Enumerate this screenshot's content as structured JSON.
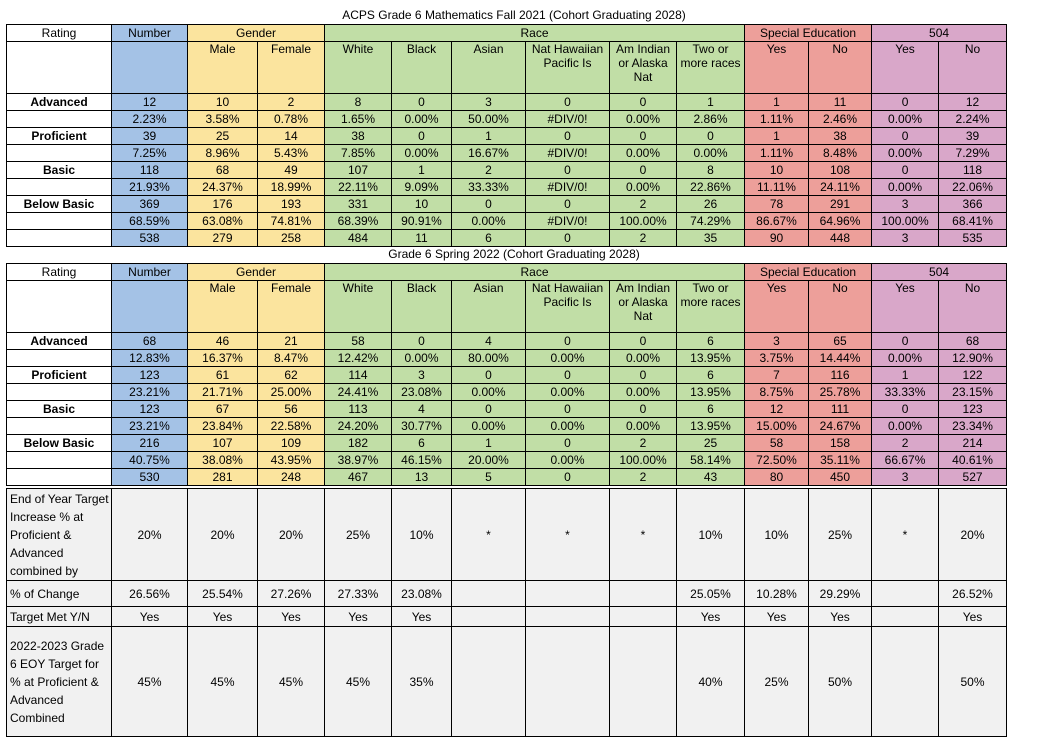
{
  "fall": {
    "title": "ACPS Grade 6 Mathematics  Fall 2021 (Cohort Graduating 2028)",
    "headers": {
      "rating": "Rating",
      "number": "Number",
      "gender": "Gender",
      "race": "Race",
      "sped": "Special Education",
      "s504": "504",
      "male": "Male",
      "female": "Female",
      "white": "White",
      "black": "Black",
      "asian": "Asian",
      "nathawaiian": "Nat Hawaiian Pacific Is",
      "amindian": "Am Indian or Alaska Nat",
      "twoormore": "Two or more races",
      "yes": "Yes",
      "no": "No"
    },
    "rows": [
      {
        "label": "Advanced",
        "values": [
          "12",
          "10",
          "2",
          "8",
          "0",
          "3",
          "0",
          "0",
          "1",
          "1",
          "11",
          "0",
          "12"
        ]
      },
      {
        "label": "",
        "values": [
          "2.23%",
          "3.58%",
          "0.78%",
          "1.65%",
          "0.00%",
          "50.00%",
          "#DIV/0!",
          "0.00%",
          "2.86%",
          "1.11%",
          "2.46%",
          "0.00%",
          "2.24%"
        ]
      },
      {
        "label": "Proficient",
        "values": [
          "39",
          "25",
          "14",
          "38",
          "0",
          "1",
          "0",
          "0",
          "0",
          "1",
          "38",
          "0",
          "39"
        ]
      },
      {
        "label": "",
        "values": [
          "7.25%",
          "8.96%",
          "5.43%",
          "7.85%",
          "0.00%",
          "16.67%",
          "#DIV/0!",
          "0.00%",
          "0.00%",
          "1.11%",
          "8.48%",
          "0.00%",
          "7.29%"
        ]
      },
      {
        "label": "Basic",
        "values": [
          "118",
          "68",
          "49",
          "107",
          "1",
          "2",
          "0",
          "0",
          "8",
          "10",
          "108",
          "0",
          "118"
        ]
      },
      {
        "label": "",
        "values": [
          "21.93%",
          "24.37%",
          "18.99%",
          "22.11%",
          "9.09%",
          "33.33%",
          "#DIV/0!",
          "0.00%",
          "22.86%",
          "11.11%",
          "24.11%",
          "0.00%",
          "22.06%"
        ]
      },
      {
        "label": "Below Basic",
        "values": [
          "369",
          "176",
          "193",
          "331",
          "10",
          "0",
          "0",
          "2",
          "26",
          "78",
          "291",
          "3",
          "366"
        ]
      },
      {
        "label": "",
        "values": [
          "68.59%",
          "63.08%",
          "74.81%",
          "68.39%",
          "90.91%",
          "0.00%",
          "#DIV/0!",
          "100.00%",
          "74.29%",
          "86.67%",
          "64.96%",
          "100.00%",
          "68.41%"
        ]
      },
      {
        "label": "",
        "values": [
          "538",
          "279",
          "258",
          "484",
          "11",
          "6",
          "0",
          "2",
          "35",
          "90",
          "448",
          "3",
          "535"
        ]
      }
    ]
  },
  "spring": {
    "title": "Grade 6 Spring 2022  (Cohort Graduating 2028)",
    "rows": [
      {
        "label": "Advanced",
        "values": [
          "68",
          "46",
          "21",
          "58",
          "0",
          "4",
          "0",
          "0",
          "6",
          "3",
          "65",
          "0",
          "68"
        ]
      },
      {
        "label": "",
        "values": [
          "12.83%",
          "16.37%",
          "8.47%",
          "12.42%",
          "0.00%",
          "80.00%",
          "0.00%",
          "0.00%",
          "13.95%",
          "3.75%",
          "14.44%",
          "0.00%",
          "12.90%"
        ]
      },
      {
        "label": "Proficient",
        "values": [
          "123",
          "61",
          "62",
          "114",
          "3",
          "0",
          "0",
          "0",
          "6",
          "7",
          "116",
          "1",
          "122"
        ]
      },
      {
        "label": "",
        "values": [
          "23.21%",
          "21.71%",
          "25.00%",
          "24.41%",
          "23.08%",
          "0.00%",
          "0.00%",
          "0.00%",
          "13.95%",
          "8.75%",
          "25.78%",
          "33.33%",
          "23.15%"
        ]
      },
      {
        "label": "Basic",
        "values": [
          "123",
          "67",
          "56",
          "113",
          "4",
          "0",
          "0",
          "0",
          "6",
          "12",
          "111",
          "0",
          "123"
        ]
      },
      {
        "label": "",
        "values": [
          "23.21%",
          "23.84%",
          "22.58%",
          "24.20%",
          "30.77%",
          "0.00%",
          "0.00%",
          "0.00%",
          "13.95%",
          "15.00%",
          "24.67%",
          "0.00%",
          "23.34%"
        ]
      },
      {
        "label": "Below Basic",
        "values": [
          "216",
          "107",
          "109",
          "182",
          "6",
          "1",
          "0",
          "2",
          "25",
          "58",
          "158",
          "2",
          "214"
        ]
      },
      {
        "label": "",
        "values": [
          "40.75%",
          "38.08%",
          "43.95%",
          "38.97%",
          "46.15%",
          "20.00%",
          "0.00%",
          "100.00%",
          "58.14%",
          "72.50%",
          "35.11%",
          "66.67%",
          "40.61%"
        ]
      },
      {
        "label": "",
        "values": [
          "530",
          "281",
          "248",
          "467",
          "13",
          "5",
          "0",
          "2",
          "43",
          "80",
          "450",
          "3",
          "527"
        ]
      }
    ]
  },
  "targets": [
    {
      "label": "End of Year Target Increase % at Proficient & Advanced combined  by",
      "values": [
        "20%",
        "20%",
        "20%",
        "25%",
        "10%",
        "*",
        "*",
        "*",
        "10%",
        "10%",
        "25%",
        "*",
        "20%"
      ]
    },
    {
      "label": "% of Change",
      "values": [
        "26.56%",
        "25.54%",
        "27.26%",
        "27.33%",
        "23.08%",
        "",
        "",
        "",
        "25.05%",
        "10.28%",
        "29.29%",
        "",
        "26.52%"
      ]
    },
    {
      "label": "Target Met  Y/N",
      "values": [
        "Yes",
        "Yes",
        "Yes",
        "Yes",
        "Yes",
        "",
        "",
        "",
        "Yes",
        "Yes",
        "Yes",
        "",
        "Yes"
      ]
    },
    {
      "label": "2022-2023 Grade 6 EOY Target for % at Proficient & Advanced Combined",
      "values": [
        "45%",
        "45%",
        "45%",
        "45%",
        "35%",
        "",
        "",
        "",
        "40%",
        "25%",
        "50%",
        "",
        "50%"
      ]
    }
  ],
  "colors": {
    "number": "#a4c2e6",
    "gender": "#fbe49e",
    "race": "#c1dea6",
    "sped": "#ed9f9a",
    "s504": "#d9a7c9",
    "target_bg": "#f1f1f1"
  }
}
